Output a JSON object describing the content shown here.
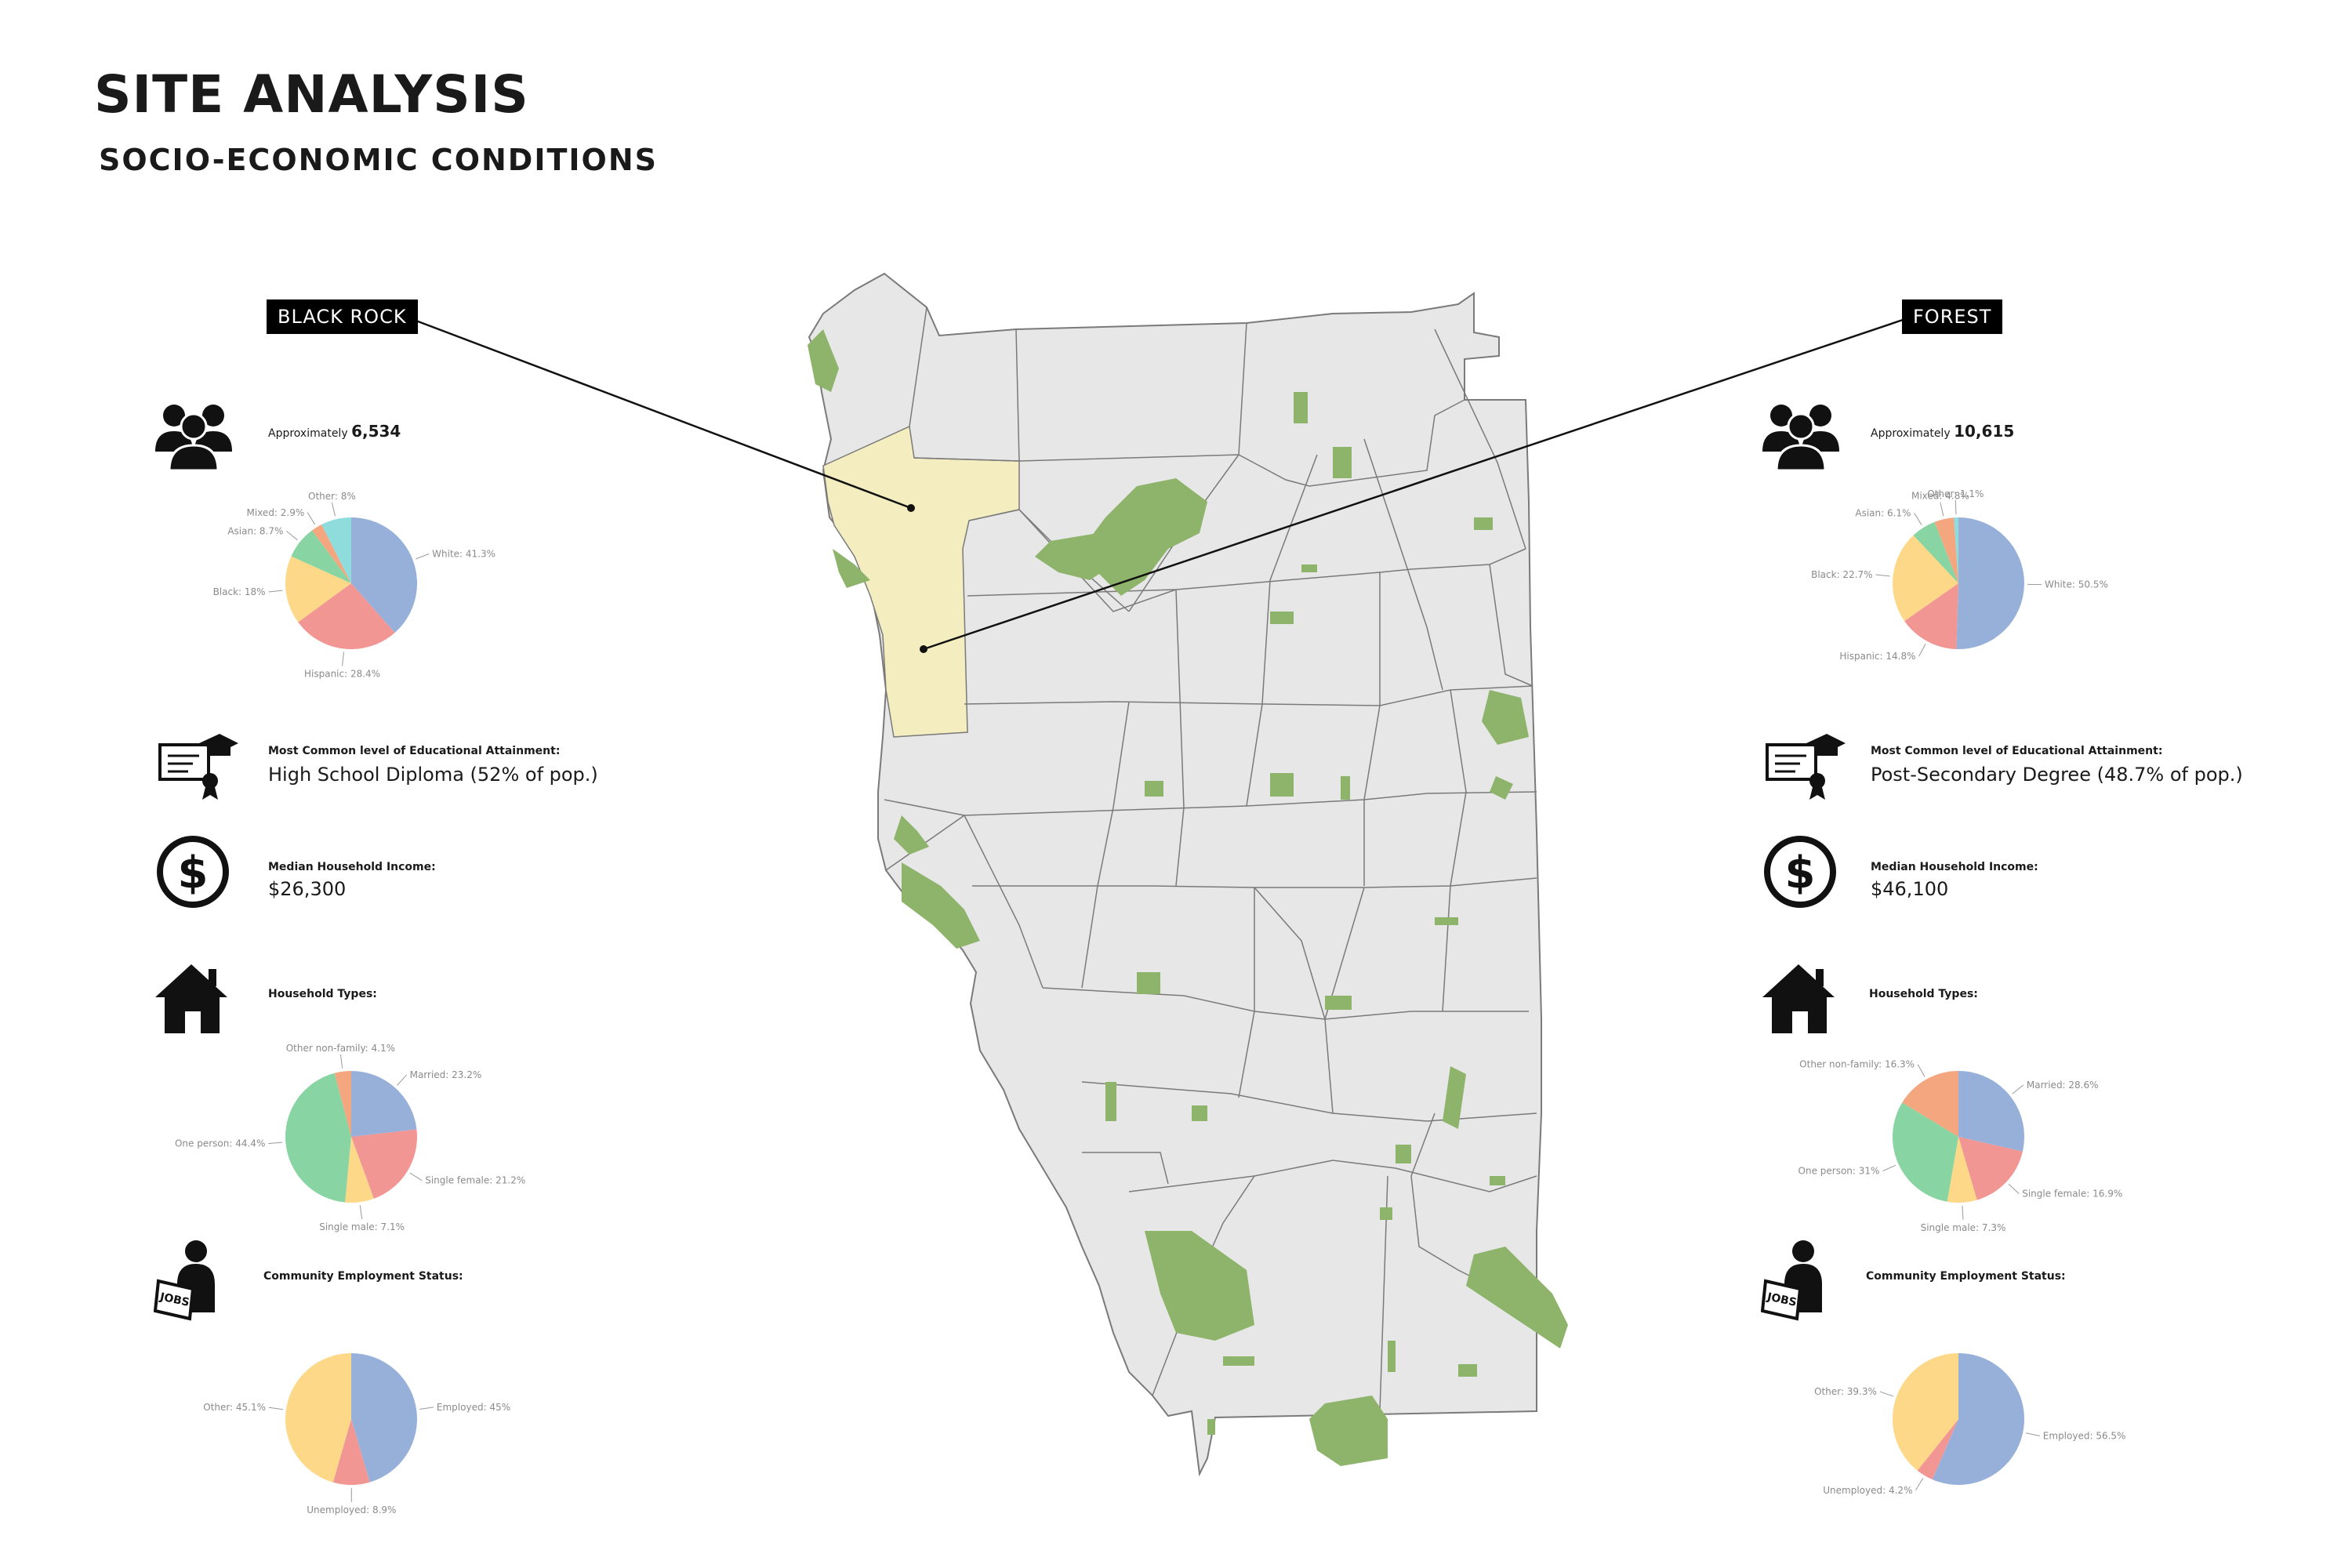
{
  "header": {
    "title": "SITE ANALYSIS",
    "subtitle": "SOCIO-ECONOMIC CONDITIONS"
  },
  "colors": {
    "blue": "#97b0da",
    "red": "#f29694",
    "yellow": "#fdd888",
    "green": "#88d4a2",
    "cyan": "#8fdcdc",
    "orange": "#f4a67e",
    "map_fill": "#e7e7e7",
    "map_stroke": "#7a7a7a",
    "park": "#8db46a",
    "highlight": "#f4edc0"
  },
  "neighborhoods": [
    {
      "name": "BLACK ROCK",
      "population_label": "Approximately",
      "population": "6,534",
      "race": [
        {
          "label": "White: 41.3%",
          "value": 41.3,
          "color": "#97b0da"
        },
        {
          "label": "Hispanic: 28.4%",
          "value": 28.4,
          "color": "#f29694"
        },
        {
          "label": "Black: 18%",
          "value": 18,
          "color": "#fdd888"
        },
        {
          "label": "Asian: 8.7%",
          "value": 8.7,
          "color": "#88d4a2"
        },
        {
          "label": "Mixed: 2.9%",
          "value": 2.9,
          "color": "#f4a67e"
        },
        {
          "label": "Other: 8%",
          "value": 8,
          "color": "#8fdcdc"
        }
      ],
      "education_label": "Most Common level of Educational Attainment:",
      "education_value": "High School Diploma (52% of pop.)",
      "income_label": "Median Household Income:",
      "income_value": "$26,300",
      "household_label": "Household Types:",
      "household": [
        {
          "label": "Married: 23.2%",
          "value": 23.2,
          "color": "#97b0da"
        },
        {
          "label": "Single female: 21.2%",
          "value": 21.2,
          "color": "#f29694"
        },
        {
          "label": "Single male: 7.1%",
          "value": 7.1,
          "color": "#fdd888"
        },
        {
          "label": "One person: 44.4%",
          "value": 44.4,
          "color": "#88d4a2"
        },
        {
          "label": "Other non-family: 4.1%",
          "value": 4.1,
          "color": "#f4a67e"
        }
      ],
      "employment_label": "Community Employment Status:",
      "employment": [
        {
          "label": "Employed: 45%",
          "value": 45,
          "color": "#97b0da"
        },
        {
          "label": "Unemployed: 8.9%",
          "value": 8.9,
          "color": "#f29694"
        },
        {
          "label": "Other: 45.1%",
          "value": 45.1,
          "color": "#fdd888"
        }
      ]
    },
    {
      "name": "FOREST",
      "population_label": "Approximately",
      "population": "10,615",
      "race": [
        {
          "label": "White: 50.5%",
          "value": 50.5,
          "color": "#97b0da"
        },
        {
          "label": "Hispanic: 14.8%",
          "value": 14.8,
          "color": "#f29694"
        },
        {
          "label": "Black: 22.7%",
          "value": 22.7,
          "color": "#fdd888"
        },
        {
          "label": "Asian: 6.1%",
          "value": 6.1,
          "color": "#88d4a2"
        },
        {
          "label": "Mixed: 4.8%",
          "value": 4.8,
          "color": "#f4a67e"
        },
        {
          "label": "Other: 1.1%",
          "value": 1.1,
          "color": "#8fdcdc"
        }
      ],
      "education_label": "Most Common level of Educational Attainment:",
      "education_value": "Post-Secondary Degree (48.7% of pop.)",
      "income_label": "Median Household Income:",
      "income_value": "$46,100",
      "household_label": "Household Types:",
      "household": [
        {
          "label": "Married: 28.6%",
          "value": 28.6,
          "color": "#97b0da"
        },
        {
          "label": "Single female: 16.9%",
          "value": 16.9,
          "color": "#f29694"
        },
        {
          "label": "Single male: 7.3%",
          "value": 7.3,
          "color": "#fdd888"
        },
        {
          "label": "One person: 31%",
          "value": 31,
          "color": "#88d4a2"
        },
        {
          "label": "Other non-family: 16.3%",
          "value": 16.3,
          "color": "#f4a67e"
        }
      ],
      "employment_label": "Community Employment Status:",
      "employment": [
        {
          "label": "Employed: 56.5%",
          "value": 56.5,
          "color": "#97b0da"
        },
        {
          "label": "Unemployed: 4.2%",
          "value": 4.2,
          "color": "#f29694"
        },
        {
          "label": "Other: 39.3%",
          "value": 39.3,
          "color": "#fdd888"
        }
      ]
    }
  ],
  "icons": {
    "population": "people-group-icon",
    "education": "diploma-graduation-cap-icon",
    "income": "dollar-circle-icon",
    "household": "house-icon",
    "employment": "jobs-newspaper-person-icon"
  }
}
